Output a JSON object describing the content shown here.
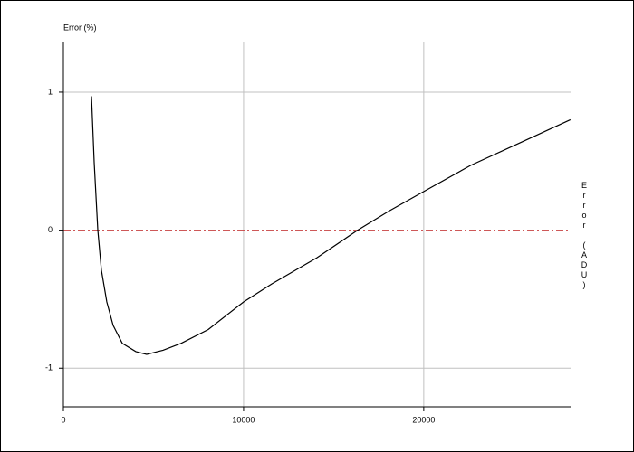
{
  "chart_data": {
    "type": "line",
    "y_label": "Error (%)",
    "y2_label": "Error (ADU)",
    "x": [
      1560,
      1710,
      1910,
      2110,
      2410,
      2760,
      3270,
      4020,
      4620,
      5530,
      6530,
      8040,
      10000,
      11560,
      14070,
      16330,
      18090,
      20000,
      22610,
      25130,
      28140
    ],
    "series": [
      {
        "color": "#000000",
        "values": [
          0.97,
          0.49,
          0.0,
          -0.29,
          -0.52,
          -0.69,
          -0.82,
          -0.88,
          -0.9,
          -0.87,
          -0.82,
          -0.72,
          -0.52,
          -0.39,
          -0.2,
          0.0,
          0.14,
          0.28,
          0.47,
          0.62,
          0.8
        ]
      }
    ],
    "xlim": [
      0,
      28150
    ],
    "ylim": [
      -1.28,
      1.36
    ],
    "xticks": [
      0,
      10000,
      20000
    ],
    "yticks": [
      -1,
      0,
      1
    ],
    "grid": true,
    "grid_color": "#c0c0c0",
    "zero_line_color": "#c84040"
  }
}
